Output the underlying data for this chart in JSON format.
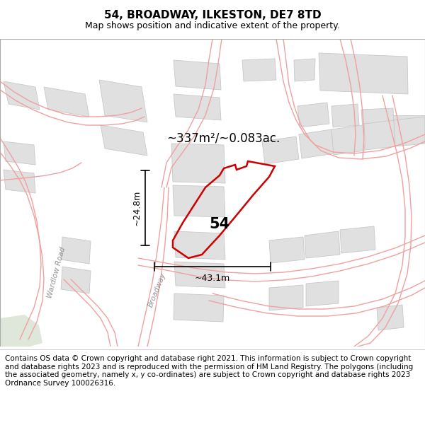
{
  "title": "54, BROADWAY, ILKESTON, DE7 8TD",
  "subtitle": "Map shows position and indicative extent of the property.",
  "footer": "Contains OS data © Crown copyright and database right 2021. This information is subject to Crown copyright and database rights 2023 and is reproduced with the permission of HM Land Registry. The polygons (including the associated geometry, namely x, y co-ordinates) are subject to Crown copyright and database rights 2023 Ordnance Survey 100026316.",
  "map_bg": "#ffffff",
  "plot_color": "#cc0000",
  "road_color": "#f0a0a0",
  "road_lw": 0.9,
  "building_fill": "#e0e0e0",
  "building_edge": "#c8c8c8",
  "building_lw": 0.6,
  "area_text": "~337m²/~0.083ac.",
  "width_text": "~43.1m",
  "height_text": "~24.8m",
  "plot_label": "54",
  "road_label": "Broadway",
  "road_label2": "Wardlow Road",
  "title_fontsize": 11,
  "subtitle_fontsize": 9,
  "footer_fontsize": 7.5,
  "annotation_fontsize": 9,
  "area_fontsize": 12
}
